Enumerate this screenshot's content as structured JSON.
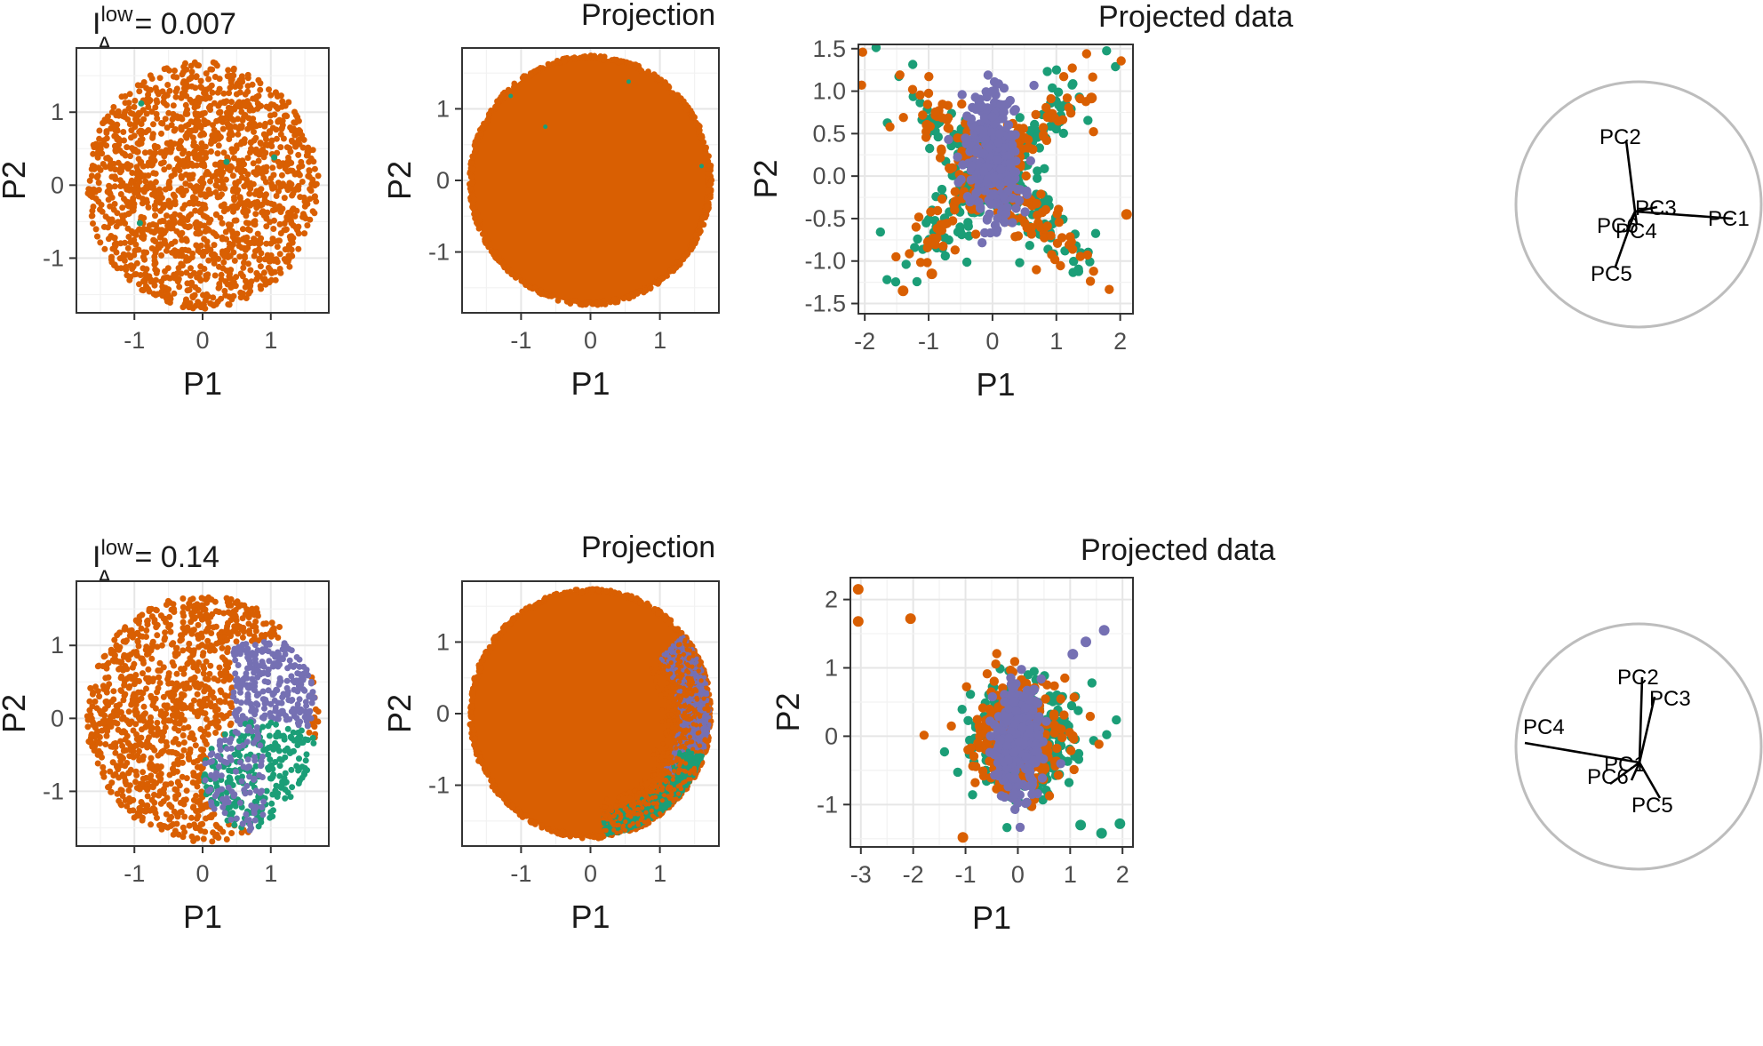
{
  "colors": {
    "orange": "#d95f02",
    "green": "#1b9e77",
    "purple": "#7570b3"
  },
  "rows": [
    {
      "metric": {
        "symbol": "I",
        "sup": "low",
        "sub": "A",
        "value": "= 0.007"
      },
      "projection_title": "Projection",
      "projected_title": "Projected data",
      "axes_labels": [
        "PC2",
        "PC3",
        "PC1",
        "PC6",
        "PC4",
        "PC5"
      ]
    },
    {
      "metric": {
        "symbol": "I",
        "sup": "low",
        "sub": "A",
        "value": "= 0.14"
      },
      "projection_title": "Projection",
      "projected_title": "Projected data",
      "axes_labels": [
        "PC2",
        "PC3",
        "PC4",
        "PC1",
        "PC6",
        "PC5"
      ]
    }
  ],
  "chart_data": [
    {
      "type": "scatter",
      "panel": "row1-sample",
      "xlabel": "P1",
      "ylabel": "P2",
      "xlim": [
        -1.85,
        1.85
      ],
      "ylim": [
        -1.75,
        1.88
      ],
      "xticks": [
        -1,
        0,
        1
      ],
      "yticks": [
        -1,
        0,
        1
      ],
      "grid": true,
      "shape": {
        "center": [
          0,
          0
        ],
        "radius": 1.7
      },
      "series": [
        {
          "color": "orange",
          "count": 1500
        },
        {
          "color": "green",
          "points": [
            [
              -0.9,
              1.12
            ],
            [
              0.35,
              0.32
            ],
            [
              1.05,
              0.38
            ],
            [
              -0.92,
              -0.52
            ]
          ]
        }
      ]
    },
    {
      "type": "scatter",
      "panel": "row1-projection",
      "xlabel": "P1",
      "ylabel": "P2",
      "xlim": [
        -1.85,
        1.85
      ],
      "ylim": [
        -1.85,
        1.85
      ],
      "xticks": [
        -1,
        0,
        1
      ],
      "yticks": [
        -1,
        0,
        1
      ],
      "grid": true,
      "shape": {
        "center": [
          0,
          0
        ],
        "radius": 1.72,
        "filled": true
      },
      "series": [
        {
          "color": "orange"
        },
        {
          "color": "green",
          "points": [
            [
              -1.15,
              1.18
            ],
            [
              -0.65,
              0.75
            ],
            [
              1.6,
              0.2
            ],
            [
              0.55,
              1.38
            ]
          ]
        }
      ]
    },
    {
      "type": "scatter",
      "panel": "row1-projected-data",
      "title": "Projected data",
      "xlabel": "P1",
      "ylabel": "P2",
      "xlim": [
        -2.1,
        2.2
      ],
      "ylim": [
        -1.62,
        1.55
      ],
      "xticks": [
        -2,
        -1,
        0,
        1,
        2
      ],
      "yticks": [
        -1.5,
        -1.0,
        -0.5,
        0.0,
        0.5,
        1.0,
        1.5
      ],
      "ytick_labels": [
        "-1.5",
        "-1.0",
        "-0.5",
        "0.0",
        "0.5",
        "1.0",
        "1.5"
      ],
      "grid": true,
      "series": [
        {
          "color": "green",
          "count": 320,
          "pattern": "x-shape"
        },
        {
          "color": "orange",
          "count": 280,
          "pattern": "x-shape",
          "outliers": [
            [
              2.1,
              -0.45
            ],
            [
              -1.4,
              -1.35
            ],
            [
              1.55,
              0.92
            ],
            [
              -0.95,
              -1.15
            ]
          ]
        },
        {
          "color": "purple",
          "count": 300,
          "pattern": "central"
        }
      ]
    },
    {
      "type": "scatter",
      "panel": "row2-sample",
      "xlabel": "P1",
      "ylabel": "P2",
      "xlim": [
        -1.85,
        1.85
      ],
      "ylim": [
        -1.75,
        1.88
      ],
      "xticks": [
        -1,
        0,
        1
      ],
      "yticks": [
        -1,
        0,
        1
      ],
      "grid": true,
      "shape": {
        "center": [
          0,
          0
        ],
        "radius": 1.7
      },
      "series": [
        {
          "color": "orange",
          "count": 1500
        },
        {
          "color": "purple",
          "count": 260,
          "region": "right-middle"
        },
        {
          "color": "green",
          "count": 260,
          "region": "lower-right"
        }
      ]
    },
    {
      "type": "scatter",
      "panel": "row2-projection",
      "xlabel": "P1",
      "ylabel": "P2",
      "xlim": [
        -1.85,
        1.85
      ],
      "ylim": [
        -1.85,
        1.85
      ],
      "xticks": [
        -1,
        0,
        1
      ],
      "yticks": [
        -1,
        0,
        1
      ],
      "grid": true,
      "shape": {
        "center": [
          0,
          0
        ],
        "radius": 1.72,
        "filled": true
      },
      "series": [
        {
          "color": "orange"
        },
        {
          "color": "purple",
          "region": "right-edge"
        },
        {
          "color": "green",
          "region": "lower-right-edge"
        }
      ]
    },
    {
      "type": "scatter",
      "panel": "row2-projected-data",
      "title": "Projected data",
      "xlabel": "P1",
      "ylabel": "P2",
      "xlim": [
        -3.2,
        2.2
      ],
      "ylim": [
        -1.62,
        2.32
      ],
      "xticks": [
        -3,
        -2,
        -1,
        0,
        1,
        2
      ],
      "yticks": [
        -1,
        0,
        1,
        2
      ],
      "grid": true,
      "series": [
        {
          "color": "green",
          "count": 300,
          "outliers": [
            [
              1.95,
              -1.28
            ],
            [
              1.6,
              -1.42
            ],
            [
              1.2,
              -1.3
            ]
          ]
        },
        {
          "color": "orange",
          "count": 300,
          "outliers": [
            [
              -3.05,
              2.15
            ],
            [
              -3.05,
              1.68
            ],
            [
              -2.05,
              1.72
            ],
            [
              -1.05,
              -1.48
            ]
          ]
        },
        {
          "color": "purple",
          "count": 300,
          "outliers": [
            [
              1.65,
              1.55
            ],
            [
              1.3,
              1.38
            ],
            [
              1.05,
              1.2
            ]
          ]
        }
      ]
    }
  ]
}
